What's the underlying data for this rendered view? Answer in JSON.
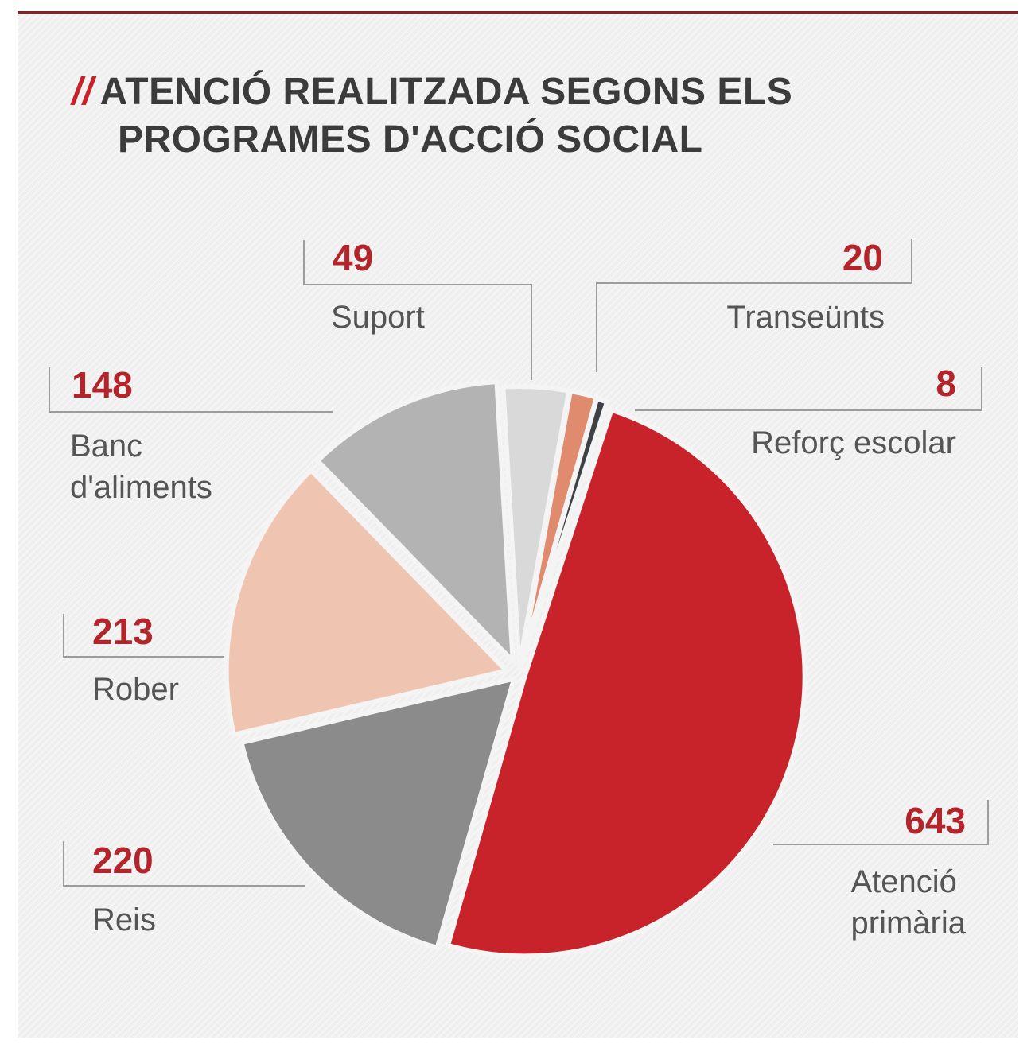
{
  "title": {
    "mark": "//",
    "line1": "ATENCIÓ REALITZADA SEGONS ELS",
    "line2": "PROGRAMES D'ACCIÓ SOCIAL"
  },
  "chart_data": {
    "type": "pie",
    "title": "ATENCIÓ REALITZADA SEGONS ELS PROGRAMES D'ACCIÓ SOCIAL",
    "slices": [
      {
        "label": "Atenció primària",
        "value": 643,
        "color": "#c8232a"
      },
      {
        "label": "Reis",
        "value": 220,
        "color": "#8b8b8b"
      },
      {
        "label": "Rober",
        "value": 213,
        "color": "#efc5b2"
      },
      {
        "label": "Banc d'aliments",
        "value": 148,
        "color": "#b3b3b3"
      },
      {
        "label": "Suport",
        "value": 49,
        "color": "#d9d9d9"
      },
      {
        "label": "Transeünts",
        "value": 20,
        "color": "#e08a6e"
      },
      {
        "label": "Reforç escolar",
        "value": 8,
        "color": "#3d4145"
      }
    ]
  },
  "colors": {
    "accent": "#c8232a",
    "value_text": "#b4252b",
    "label_text": "#555555",
    "title_text": "#3b3b3b"
  }
}
